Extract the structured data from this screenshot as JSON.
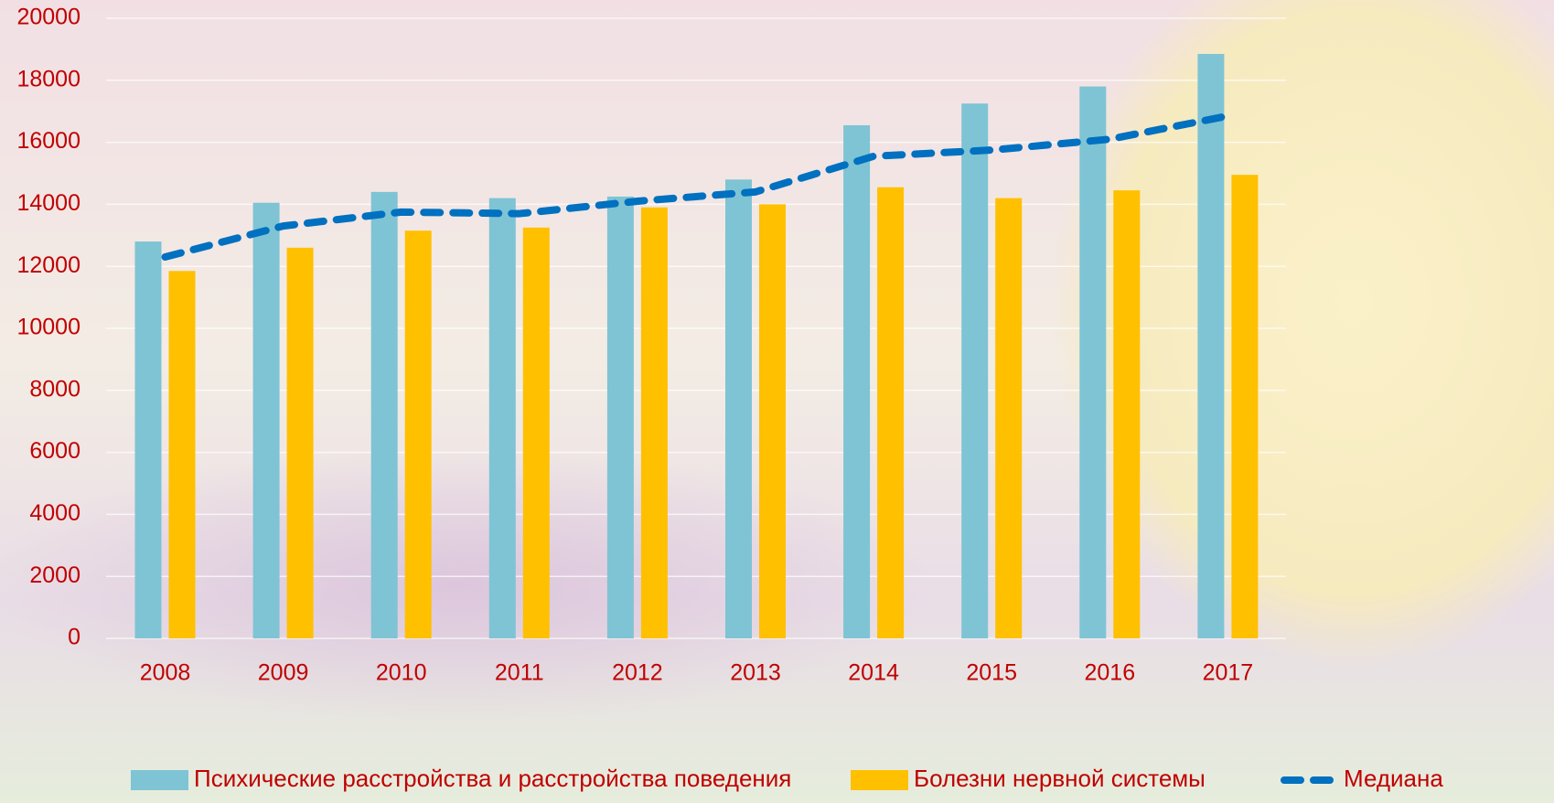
{
  "chart_data": {
    "type": "bar",
    "categories": [
      "2008",
      "2009",
      "2010",
      "2011",
      "2012",
      "2013",
      "2014",
      "2015",
      "2016",
      "2017"
    ],
    "series": [
      {
        "name": "Психические расстройства и расстройства поведения",
        "type": "bar",
        "color": "#7ec4d4",
        "values": [
          12800,
          14050,
          14400,
          14200,
          14250,
          14800,
          16550,
          17250,
          17800,
          18850
        ]
      },
      {
        "name": "Болезни нервной системы",
        "type": "bar",
        "color": "#ffc000",
        "values": [
          11850,
          12600,
          13150,
          13250,
          13900,
          14000,
          14550,
          14200,
          14450,
          14950
        ]
      },
      {
        "name": "Медиана",
        "type": "line",
        "color": "#0070c0",
        "dashed": true,
        "values": [
          12300,
          13300,
          13750,
          13700,
          14100,
          14400,
          15550,
          15750,
          16100,
          16850
        ]
      }
    ],
    "ylim": [
      0,
      20000
    ],
    "yticks": [
      0,
      2000,
      4000,
      6000,
      8000,
      10000,
      12000,
      14000,
      16000,
      18000,
      20000
    ],
    "grid": true,
    "legend": "bottom"
  }
}
